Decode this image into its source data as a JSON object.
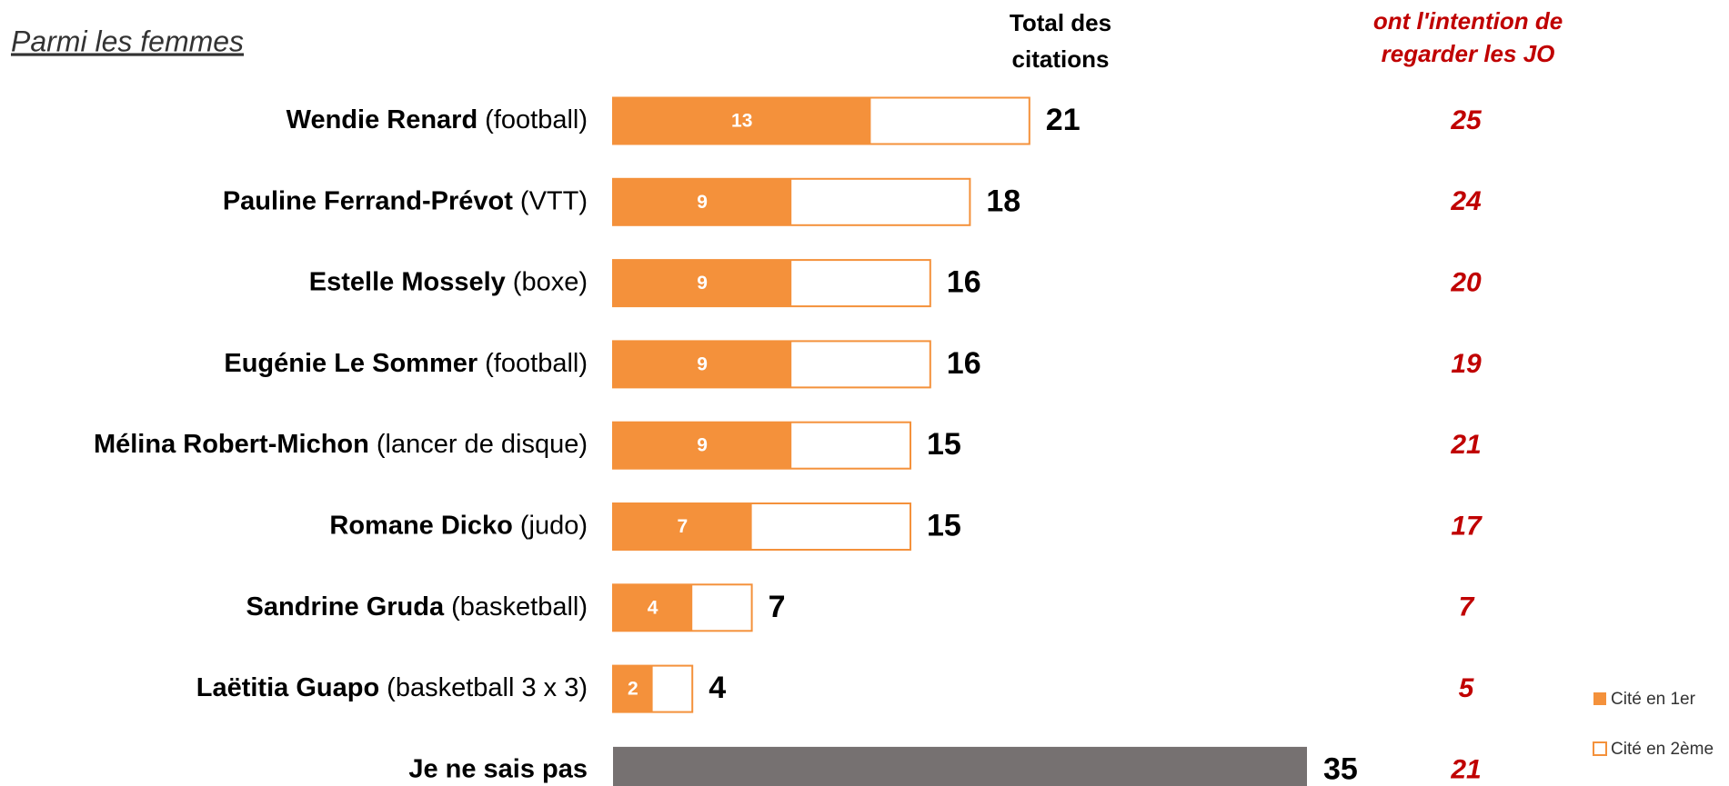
{
  "chart_data": {
    "type": "bar",
    "subtitle": "Parmi les femmes",
    "total_header": [
      "Total des",
      "citations"
    ],
    "subgroup_header": [
      "ont l'intention de",
      "regarder les JO"
    ],
    "labels": [
      {
        "name": "Wendie Renard",
        "detail": "(football)"
      },
      {
        "name": "Pauline Ferrand-Prévot",
        "detail": "(VTT)"
      },
      {
        "name": "Estelle Mossely",
        "detail": "(boxe)"
      },
      {
        "name": "Eugénie Le Sommer",
        "detail": "(football)"
      },
      {
        "name": "Mélina Robert-Michon",
        "detail": "(lancer de disque)"
      },
      {
        "name": "Romane Dicko",
        "detail": "(judo)"
      },
      {
        "name": "Sandrine Gruda",
        "detail": "(basketball)"
      },
      {
        "name": "Laëtitia Guapo",
        "detail": "(basketball 3 x 3)"
      },
      {
        "name": "Je ne sais pas"
      }
    ],
    "series": [
      {
        "name": "Cité en 1er",
        "color": "#f4913b",
        "values": [
          13,
          9,
          9,
          9,
          9,
          7,
          4,
          2,
          null
        ]
      },
      {
        "name": "Cité en 2ème",
        "color": "#ffffff",
        "outline": "#f4913b"
      }
    ],
    "totals": [
      21,
      18,
      16,
      16,
      15,
      15,
      7,
      4,
      35
    ],
    "total_colors": {
      "default": "#f4913b",
      "last": "#767171"
    },
    "subgroup_values": [
      25,
      24,
      20,
      19,
      21,
      17,
      7,
      5,
      21
    ]
  }
}
